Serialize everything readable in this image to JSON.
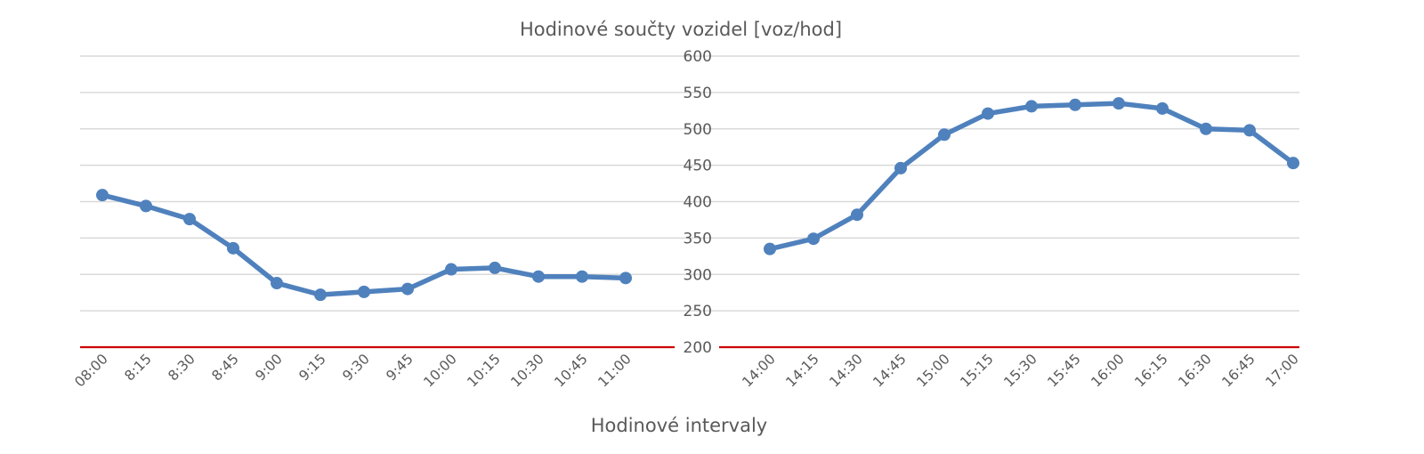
{
  "chart_data": {
    "type": "line",
    "title": "Hodinové součty vozidel [voz/hod]",
    "xlabel": "Hodinové intervaly",
    "ylabel": "",
    "ylim": [
      200,
      600
    ],
    "yticks": [
      200,
      250,
      300,
      350,
      400,
      450,
      500,
      550,
      600
    ],
    "grid": true,
    "legend": "none",
    "line_color": "#4f81bd",
    "baseline_color": "#cc0000",
    "gridline_color": "#d9d9d9",
    "segments": [
      {
        "categories": [
          "08:00",
          "8:15",
          "8:30",
          "8:45",
          "9:00",
          "9:15",
          "9:30",
          "9:45",
          "10:00",
          "10:15",
          "10:30",
          "10:45",
          "11:00"
        ],
        "values": [
          409,
          394,
          376,
          336,
          288,
          272,
          276,
          280,
          307,
          309,
          297,
          297,
          295
        ]
      },
      {
        "categories": [
          "14:00",
          "14:15",
          "14:30",
          "14:45",
          "15:00",
          "15:15",
          "15:30",
          "15:45",
          "16:00",
          "16:15",
          "16:30",
          "16:45",
          "17:00"
        ],
        "values": [
          335,
          349,
          382,
          446,
          492,
          521,
          531,
          533,
          535,
          528,
          500,
          498,
          453
        ]
      }
    ]
  }
}
